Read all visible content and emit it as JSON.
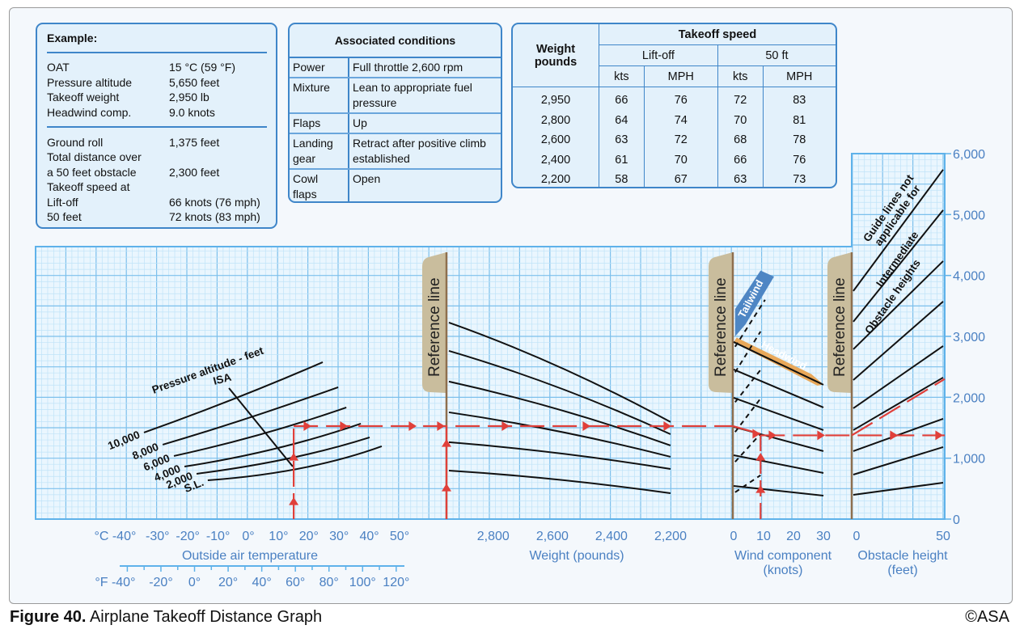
{
  "example": {
    "title": "Example:",
    "inputs": [
      {
        "label": "OAT",
        "value": "15 °C (59 °F)"
      },
      {
        "label": "Pressure altitude",
        "value": "5,650 feet"
      },
      {
        "label": "Takeoff weight",
        "value": "2,950 lb"
      },
      {
        "label": "Headwind comp.",
        "value": "9.0 knots"
      }
    ],
    "results": [
      {
        "label": "Ground roll",
        "value": "1,375 feet"
      },
      {
        "label": "Total distance over",
        "value": ""
      },
      {
        "label": "a 50 feet obstacle",
        "value": "2,300 feet"
      },
      {
        "label": "Takeoff speed at",
        "value": ""
      },
      {
        "label": "Lift-off",
        "value": "66 knots (76 mph)"
      },
      {
        "label": "50 feet",
        "value": "72 knots (83 mph)"
      }
    ]
  },
  "conditions": {
    "title": "Associated conditions",
    "rows": [
      {
        "key": "Power",
        "value": "Full throttle 2,600 rpm"
      },
      {
        "key": "Mixture",
        "value": "Lean to appropriate fuel pressure"
      },
      {
        "key": "Flaps",
        "value": "Up"
      },
      {
        "key": "Landing gear",
        "value": "Retract after positive climb established"
      },
      {
        "key": "Cowl flaps",
        "value": "Open"
      }
    ]
  },
  "speed_table": {
    "weight_header": "Weight pounds",
    "title": "Takeoff speed",
    "group1": "Lift-off",
    "group2": "50 ft",
    "units": [
      "kts",
      "MPH",
      "kts",
      "MPH"
    ],
    "rows": [
      [
        "2,950",
        "66",
        "76",
        "72",
        "83"
      ],
      [
        "2,800",
        "64",
        "74",
        "70",
        "81"
      ],
      [
        "2,600",
        "63",
        "72",
        "68",
        "78"
      ],
      [
        "2,400",
        "61",
        "70",
        "66",
        "76"
      ],
      [
        "2,200",
        "58",
        "67",
        "63",
        "73"
      ]
    ]
  },
  "chart_data": {
    "type": "line",
    "ylim": [
      0,
      6000
    ],
    "yticks": [
      "0",
      "1,000",
      "2,000",
      "3,000",
      "4,000",
      "5,000",
      "6,000"
    ],
    "grid": true,
    "reference_line_label": "Reference line",
    "temperature": {
      "xlabel": "Outside air temperature",
      "c_ticks": [
        "°C -40°",
        "-30°",
        "-20°",
        "-10°",
        "0°",
        "10°",
        "20°",
        "30°",
        "40°",
        "50°"
      ],
      "f_ticks": [
        "°F -40°",
        "-20°",
        "0°",
        "20°",
        "40°",
        "60°",
        "80°",
        "100°",
        "120°"
      ],
      "curves_label": "Pressure altitude - feet",
      "isa_label": "ISA",
      "series": [
        {
          "name": "10,000",
          "points": [
            [
              -34.5,
              1421
            ],
            [
              -4.5,
              1979
            ],
            [
              24.6,
              2576
            ]
          ]
        },
        {
          "name": "8,000",
          "points": [
            [
              -28.3,
              1222
            ],
            [
              0,
              1660
            ],
            [
              29.7,
              2165
            ]
          ]
        },
        {
          "name": "6,000",
          "points": [
            [
              -24.6,
              1036
            ],
            [
              4.3,
              1394
            ],
            [
              32.4,
              1833
            ]
          ]
        },
        {
          "name": "4,000",
          "points": [
            [
              -21.1,
              863
            ],
            [
              8.8,
              1155
            ],
            [
              37.2,
              1567
            ]
          ]
        },
        {
          "name": "2,000",
          "points": [
            [
              -17.1,
              744
            ],
            [
              13.4,
              996
            ],
            [
              40.1,
              1341
            ]
          ]
        },
        {
          "name": "S.L.",
          "points": [
            [
              -13.4,
              637
            ],
            [
              17.6,
              837
            ],
            [
              44.1,
              1195
            ]
          ]
        }
      ],
      "isa": [
        [
          -6.4,
          2151
        ],
        [
          14.7,
          863
        ]
      ]
    },
    "weight": {
      "xlabel": "Weight (pounds)",
      "ticks": [
        "2,800",
        "2,600",
        "2,400",
        "2,200"
      ],
      "guides": [
        [
          3227,
          1594
        ],
        [
          2762,
          1394
        ],
        [
          2258,
          1209
        ],
        [
          1753,
          1023
        ],
        [
          1262,
          823
        ],
        [
          797,
          425
        ]
      ],
      "x_range": [
        2950,
        2200
      ]
    },
    "wind": {
      "xlabel": "Wind component",
      "xunit": "(knots)",
      "ticks": [
        "0",
        "10",
        "20",
        "30"
      ],
      "headwind_label": "Headwind",
      "tailwind_label": "Tailwind",
      "headwind_guides": [
        [
          2908,
          2205
        ],
        [
          2457,
          1833
        ],
        [
          1992,
          1461
        ],
        [
          1514,
          1116
        ],
        [
          1049,
          757
        ],
        [
          544,
          385
        ]
      ],
      "tailwind_guides": [
        [
          2980,
          3600,
          10.5
        ],
        [
          2560,
          3080,
          9
        ],
        [
          2070,
          2450,
          9
        ],
        [
          1580,
          1980,
          9
        ],
        [
          1090,
          1400,
          9
        ],
        [
          590,
          720,
          9
        ]
      ]
    },
    "obstacle": {
      "xlabel": "Obstacle height",
      "xunit": "(feet)",
      "ticks": [
        "0",
        "50"
      ],
      "note": [
        "Guide lines not",
        "applicable for",
        "Intermediate",
        "Obstacle heights"
      ],
      "guides": [
        [
          3745,
          5737
        ],
        [
          3240,
          5073
        ],
        [
          2789,
          4236
        ],
        [
          2284,
          3572
        ],
        [
          1819,
          2842
        ],
        [
          1461,
          2324
        ],
        [
          1116,
          1647
        ],
        [
          730,
          1182
        ],
        [
          398,
          598
        ]
      ]
    },
    "example_path": {
      "oat_c": 15,
      "distance_after_temp": 1527,
      "headwind_kt": 9,
      "ground_roll": 1375,
      "obstacle_total": 2300
    }
  },
  "colors": {
    "grid": "#7cc0ec",
    "grid_minor": "#bfe3f8",
    "axis_text": "#4a80c2",
    "example_path": "#e0403a",
    "tab": "#c9bd9d",
    "headwind": "#e8a85a",
    "tailwind": "#4e86c4",
    "box_border": "#3f86c9"
  },
  "caption": {
    "label": "Figure 40.",
    "text": " Airplane Takeoff Distance Graph",
    "copyright": "©ASA"
  }
}
